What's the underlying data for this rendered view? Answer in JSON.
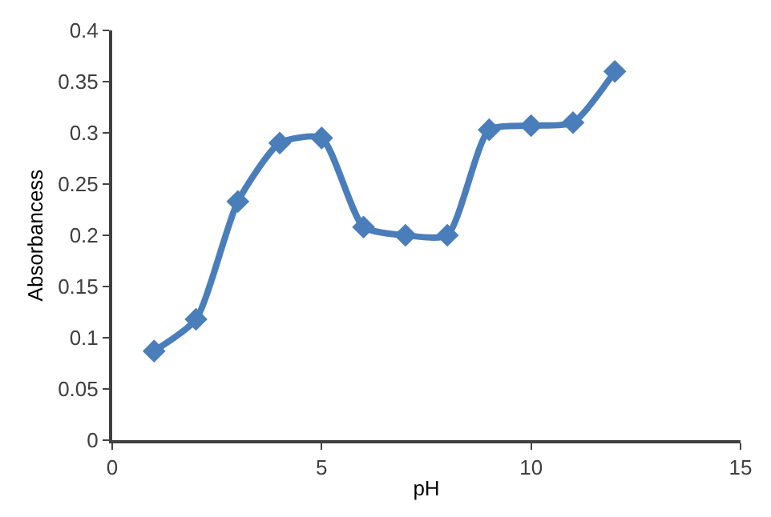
{
  "chart_data": {
    "type": "line",
    "xlabel": "pH",
    "ylabel": "Absorbancess",
    "x": [
      1,
      2,
      3,
      4,
      5,
      6,
      7,
      8,
      9,
      10,
      11,
      12
    ],
    "series": [
      {
        "color": "#4a7ebb",
        "values": [
          0.087,
          0.118,
          0.233,
          0.29,
          0.295,
          0.208,
          0.2,
          0.2,
          0.303,
          0.307,
          0.31,
          0.36
        ]
      }
    ],
    "xlim": [
      0,
      15
    ],
    "xticks": [
      0,
      5,
      10,
      15
    ],
    "ylim": [
      0,
      0.4
    ],
    "yticks": [
      0,
      0.05,
      0.1,
      0.15,
      0.2,
      0.25,
      0.3,
      0.35,
      0.4
    ],
    "legend": false,
    "marker": "diamond",
    "line_style": "solid"
  }
}
